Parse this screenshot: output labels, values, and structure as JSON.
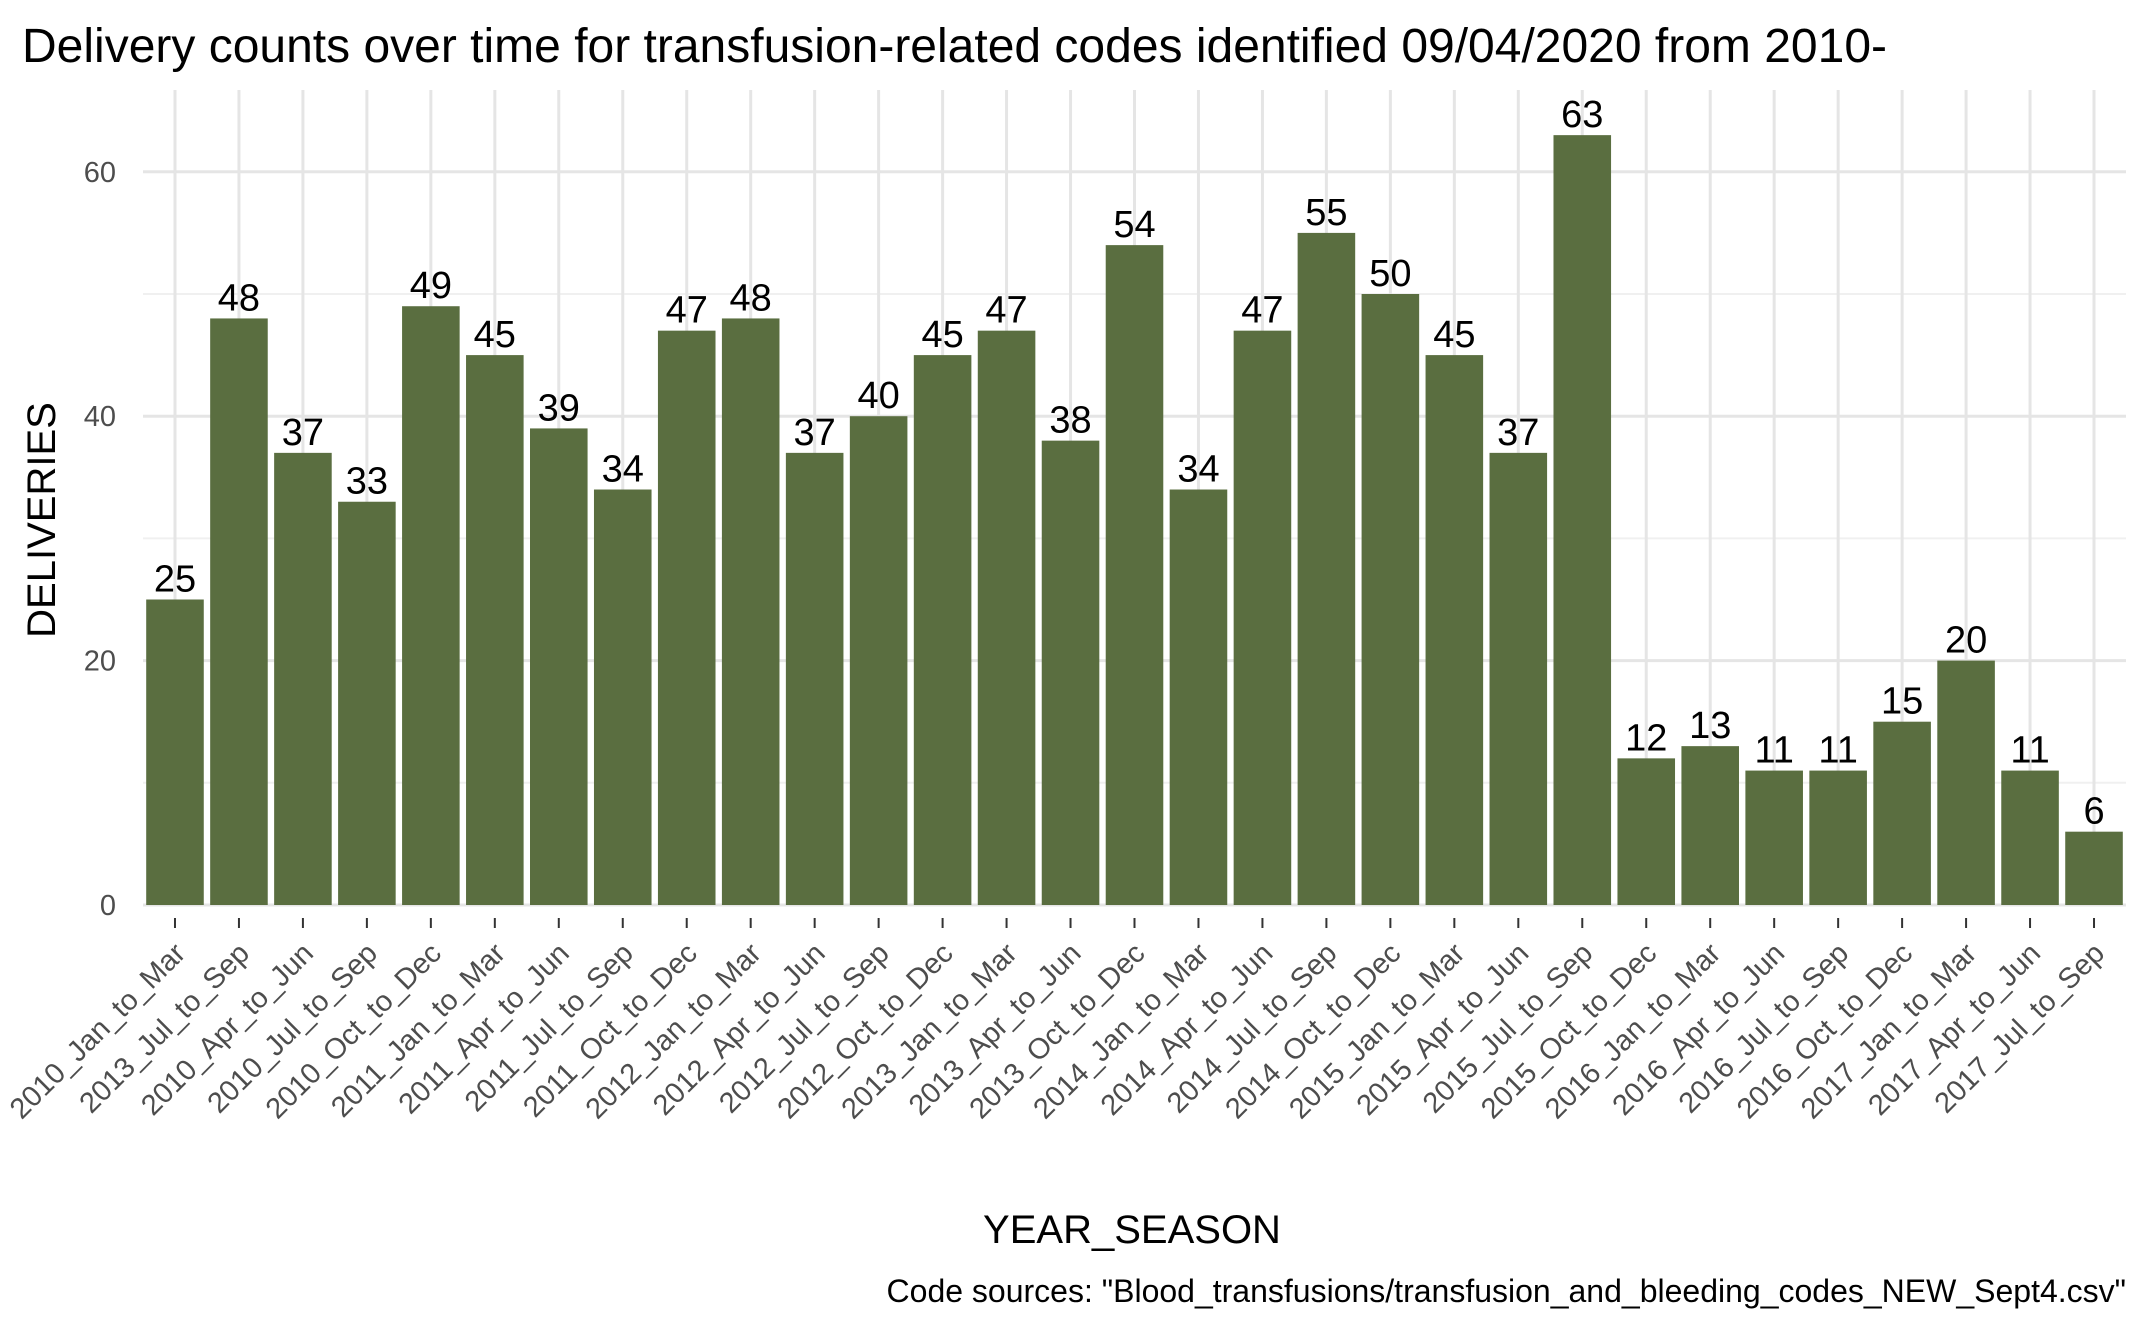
{
  "chart_data": {
    "type": "bar",
    "title": "Delivery counts over time for transfusion-related codes identified 09/04/2020 from 2010-",
    "xlabel": "YEAR_SEASON",
    "ylabel": "DELIVERIES",
    "caption": "Code sources: \"Blood_transfusions/transfusion_and_bleeding_codes_NEW_Sept4.csv\"",
    "bar_color": "#5a6e40",
    "grid": true,
    "ylim": [
      0,
      66
    ],
    "yticks": [
      0,
      20,
      40,
      60
    ],
    "categories": [
      "2010_Jan_to_Mar",
      "2013_Jul_to_Sep",
      "2010_Apr_to_Jun",
      "2010_Jul_to_Sep",
      "2010_Oct_to_Dec",
      "2011_Jan_to_Mar",
      "2011_Apr_to_Jun",
      "2011_Jul_to_Sep",
      "2011_Oct_to_Dec",
      "2012_Jan_to_Mar",
      "2012_Apr_to_Jun",
      "2012_Jul_to_Sep",
      "2012_Oct_to_Dec",
      "2013_Jan_to_Mar",
      "2013_Apr_to_Jun",
      "2013_Oct_to_Dec",
      "2014_Jan_to_Mar",
      "2014_Apr_to_Jun",
      "2014_Jul_to_Sep",
      "2014_Oct_to_Dec",
      "2015_Jan_to_Mar",
      "2015_Apr_to_Jun",
      "2015_Jul_to_Sep",
      "2015_Oct_to_Dec",
      "2016_Jan_to_Mar",
      "2016_Apr_to_Jun",
      "2016_Jul_to_Sep",
      "2016_Oct_to_Dec",
      "2017_Jan_to_Mar",
      "2017_Apr_to_Jun",
      "2017_Jul_to_Sep"
    ],
    "values": [
      25,
      48,
      37,
      33,
      49,
      45,
      39,
      34,
      47,
      48,
      37,
      40,
      45,
      47,
      38,
      54,
      34,
      47,
      55,
      50,
      45,
      37,
      63,
      12,
      13,
      11,
      11,
      15,
      20,
      11,
      6
    ]
  }
}
